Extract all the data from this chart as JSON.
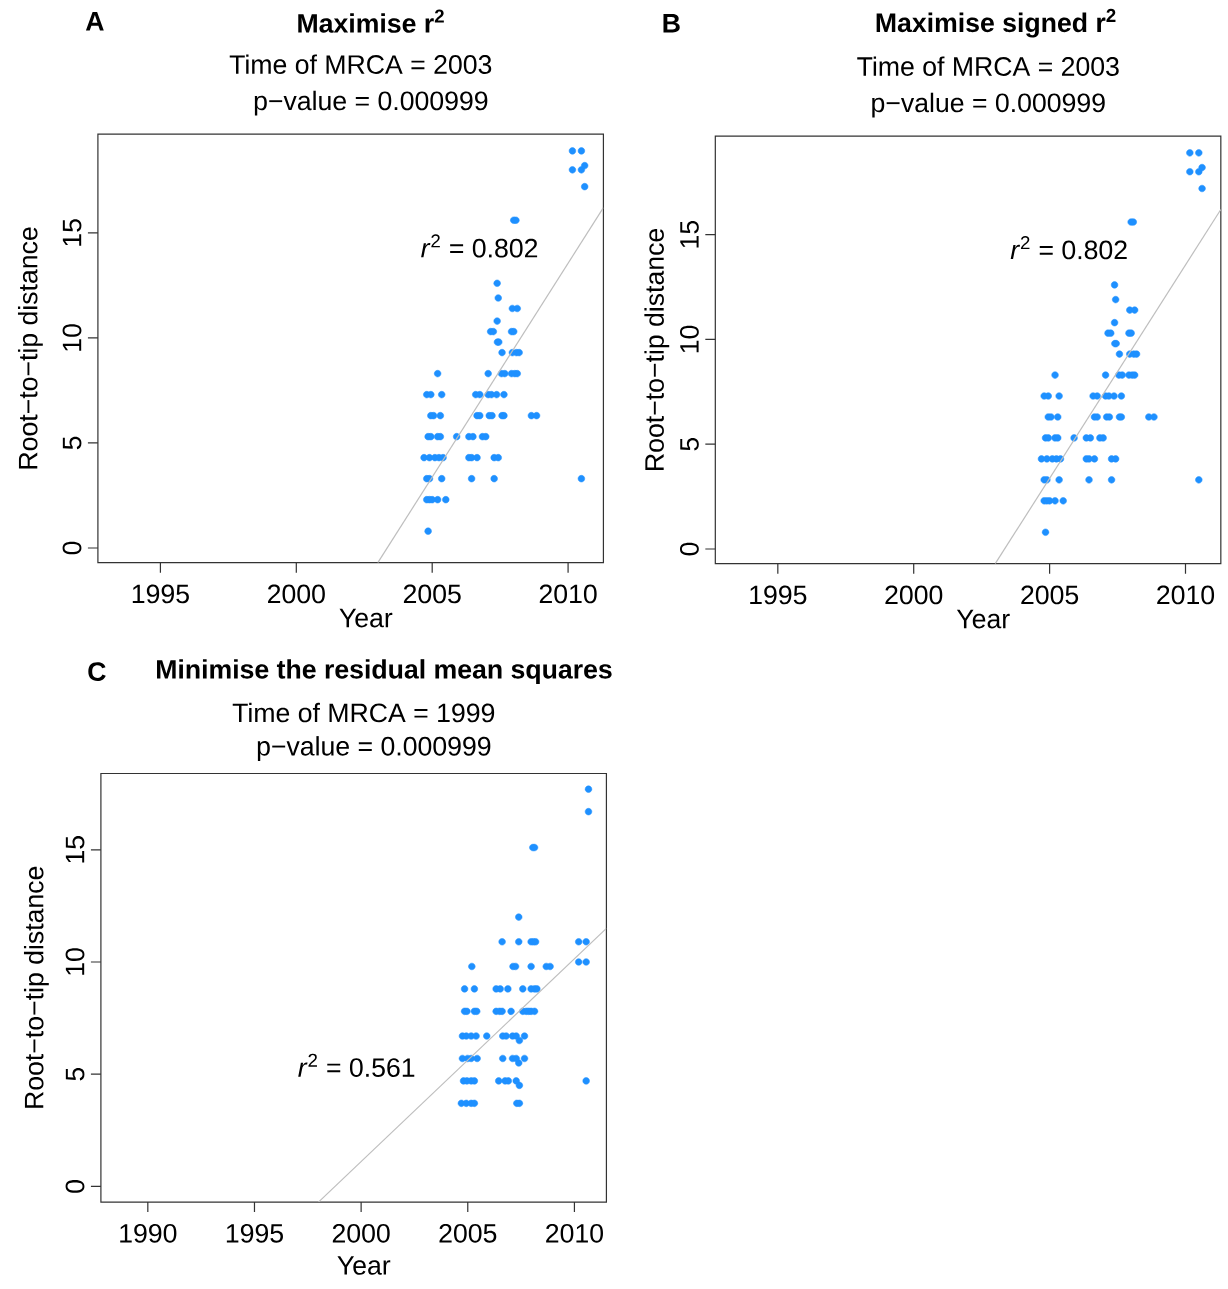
{
  "chart_data": [
    {
      "type": "scatter",
      "title": "Maximise r$^{2}$",
      "subtitle": "Time of MRCA =  2003",
      "xlabel": "Year",
      "ylabel": "Root−to−tip distance",
      "annotations": [
        "A",
        "p−value = 0.000999",
        "*r*$^{2}$ =   0.802"
      ],
      "xlim": [
        1992.7,
        2011.3
      ],
      "ylim": [
        -0.7,
        19.7
      ],
      "xticks": [
        1995,
        2000,
        2005,
        2010
      ],
      "yticks": [
        0,
        5,
        10,
        15
      ],
      "grid": false,
      "series": [
        {
          "marker": "circle",
          "color": "#1e90ff",
          "x": [
            2004.85,
            2004.8,
            2004.9,
            2005.0,
            2005.2,
            2005.5,
            2004.8,
            2004.9,
            2005.35,
            2006.45,
            2007.28,
            2010.49,
            2004.7,
            2004.9,
            2005.1,
            2005.25,
            2005.4,
            2006.35,
            2006.45,
            2006.65,
            2007.28,
            2007.43,
            2004.85,
            2004.95,
            2005.2,
            2005.3,
            2005.9,
            2006.35,
            2006.5,
            2006.85,
            2006.97,
            2004.95,
            2005.05,
            2005.3,
            2006.65,
            2006.75,
            2007.1,
            2007.2,
            2007.57,
            2007.64,
            2008.65,
            2008.84,
            2004.8,
            2004.95,
            2005.35,
            2006.6,
            2006.75,
            2007.06,
            2007.18,
            2007.37,
            2007.64,
            2005.2,
            2007.06,
            2007.55,
            2007.67,
            2007.92,
            2008.04,
            2008.13,
            2007.57,
            2007.95,
            2008.1,
            2008.2,
            2007.4,
            2007.45,
            2007.15,
            2007.25,
            2007.92,
            2008.0,
            2007.39,
            2007.95,
            2008.13,
            2007.43,
            2007.39,
            2008.0,
            2008.08,
            2010.61,
            2010.16,
            2010.49,
            2010.61,
            2010.16,
            2010.49
          ],
          "values": [
            0.8,
            2.3,
            2.3,
            2.3,
            2.3,
            2.3,
            3.3,
            3.3,
            3.3,
            3.3,
            3.3,
            3.3,
            4.3,
            4.3,
            4.3,
            4.3,
            4.3,
            4.3,
            4.3,
            4.3,
            4.3,
            4.3,
            5.3,
            5.3,
            5.3,
            5.3,
            5.3,
            5.3,
            5.3,
            5.3,
            5.3,
            6.3,
            6.3,
            6.3,
            6.3,
            6.3,
            6.3,
            6.3,
            6.3,
            6.3,
            6.3,
            6.3,
            7.3,
            7.3,
            7.3,
            7.3,
            7.3,
            7.3,
            7.3,
            7.3,
            7.3,
            8.3,
            8.3,
            8.3,
            8.3,
            8.3,
            8.3,
            8.3,
            9.3,
            9.3,
            9.3,
            9.3,
            9.8,
            9.8,
            10.3,
            10.3,
            10.3,
            10.3,
            10.8,
            11.4,
            11.4,
            11.9,
            12.6,
            15.6,
            15.6,
            17.2,
            18.0,
            18.0,
            18.2,
            18.9,
            18.9
          ]
        },
        {
          "type": "line",
          "marker": "none",
          "color": "#bebebe",
          "x": [
            2003.0,
            2011.3
          ],
          "values": [
            -0.7,
            16.2
          ]
        }
      ]
    },
    {
      "type": "scatter",
      "title": "Maximise signed r$^{2}$",
      "subtitle": "Time of MRCA =  2003",
      "xlabel": "Year",
      "ylabel": "Root−to−tip distance",
      "annotations": [
        "B",
        "p−value = 0.000999",
        "*r*$^{2}$ =   0.802"
      ],
      "xlim": [
        1992.7,
        2011.3
      ],
      "ylim": [
        -0.7,
        19.7
      ],
      "xticks": [
        1995,
        2000,
        2005,
        2010
      ],
      "yticks": [
        0,
        5,
        10,
        15
      ],
      "grid": false,
      "series": [
        {
          "marker": "circle",
          "color": "#1e90ff",
          "x": [
            2004.85,
            2004.8,
            2004.9,
            2005.0,
            2005.2,
            2005.5,
            2004.8,
            2004.9,
            2005.35,
            2006.45,
            2007.28,
            2010.49,
            2004.7,
            2004.9,
            2005.1,
            2005.25,
            2005.4,
            2006.35,
            2006.45,
            2006.65,
            2007.28,
            2007.43,
            2004.85,
            2004.95,
            2005.2,
            2005.3,
            2005.9,
            2006.35,
            2006.5,
            2006.85,
            2006.97,
            2004.95,
            2005.05,
            2005.3,
            2006.65,
            2006.75,
            2007.1,
            2007.2,
            2007.57,
            2007.64,
            2008.65,
            2008.84,
            2004.8,
            2004.95,
            2005.35,
            2006.6,
            2006.75,
            2007.06,
            2007.18,
            2007.37,
            2007.64,
            2005.2,
            2007.06,
            2007.55,
            2007.67,
            2007.92,
            2008.04,
            2008.13,
            2007.57,
            2007.95,
            2008.1,
            2008.2,
            2007.4,
            2007.45,
            2007.15,
            2007.25,
            2007.92,
            2008.0,
            2007.39,
            2007.95,
            2008.13,
            2007.43,
            2007.39,
            2008.0,
            2008.08,
            2010.61,
            2010.16,
            2010.49,
            2010.61,
            2010.16,
            2010.49
          ],
          "values": [
            0.8,
            2.3,
            2.3,
            2.3,
            2.3,
            2.3,
            3.3,
            3.3,
            3.3,
            3.3,
            3.3,
            3.3,
            4.3,
            4.3,
            4.3,
            4.3,
            4.3,
            4.3,
            4.3,
            4.3,
            4.3,
            4.3,
            5.3,
            5.3,
            5.3,
            5.3,
            5.3,
            5.3,
            5.3,
            5.3,
            5.3,
            6.3,
            6.3,
            6.3,
            6.3,
            6.3,
            6.3,
            6.3,
            6.3,
            6.3,
            6.3,
            6.3,
            7.3,
            7.3,
            7.3,
            7.3,
            7.3,
            7.3,
            7.3,
            7.3,
            7.3,
            8.3,
            8.3,
            8.3,
            8.3,
            8.3,
            8.3,
            8.3,
            9.3,
            9.3,
            9.3,
            9.3,
            9.8,
            9.8,
            10.3,
            10.3,
            10.3,
            10.3,
            10.8,
            11.4,
            11.4,
            11.9,
            12.6,
            15.6,
            15.6,
            17.2,
            18.0,
            18.0,
            18.2,
            18.9,
            18.9
          ]
        },
        {
          "type": "line",
          "marker": "none",
          "color": "#bebebe",
          "x": [
            2003.0,
            2011.3
          ],
          "values": [
            -0.7,
            16.2
          ]
        }
      ]
    },
    {
      "type": "scatter",
      "title": "Minimise the residual mean squares",
      "subtitle": "Time of MRCA = 1999",
      "xlabel": "Year",
      "ylabel": "Root−to−tip distance",
      "annotations": [
        "C",
        "p−value = 0.000999",
        "*r*$^{2}$ =   0.561"
      ],
      "xlim": [
        1987.8,
        2011.5
      ],
      "ylim": [
        -0.7,
        18.4
      ],
      "xticks": [
        1990,
        1995,
        2000,
        2005,
        2010
      ],
      "yticks": [
        0,
        5,
        10,
        15
      ],
      "grid": false,
      "series": [
        {
          "marker": "circle",
          "color": "#1e90ff",
          "x": [
            2004.7,
            2004.93,
            2005.16,
            2005.31,
            2007.3,
            2007.42,
            2007.42,
            2004.8,
            2004.96,
            2005.16,
            2005.31,
            2006.45,
            2006.75,
            2006.9,
            2007.27,
            2010.55,
            2007.39,
            2004.75,
            2004.99,
            2005.16,
            2005.44,
            2006.64,
            2007.1,
            2007.27,
            2007.66,
            2007.42,
            2004.75,
            2004.93,
            2005.16,
            2005.39,
            2005.89,
            2006.64,
            2006.8,
            2007.1,
            2007.27,
            2007.66,
            2004.85,
            2004.96,
            2005.31,
            2005.42,
            2006.33,
            2006.49,
            2006.61,
            2007.03,
            2007.58,
            2007.74,
            2007.86,
            2007.97,
            2008.13,
            2004.85,
            2005.31,
            2006.33,
            2006.52,
            2006.88,
            2007.58,
            2007.97,
            2008.13,
            2008.24,
            2005.19,
            2007.12,
            2007.24,
            2007.97,
            2008.68,
            2008.86,
            2010.2,
            2010.55,
            2006.61,
            2007.39,
            2007.97,
            2008.08,
            2008.18,
            2010.2,
            2010.55,
            2007.39,
            2008.05,
            2008.13,
            2010.66,
            2010.66
          ],
          "values": [
            3.7,
            3.7,
            3.7,
            3.7,
            3.7,
            3.7,
            4.5,
            4.7,
            4.7,
            4.7,
            4.7,
            4.7,
            4.7,
            4.7,
            4.7,
            4.7,
            5.5,
            5.7,
            5.7,
            5.7,
            5.7,
            5.7,
            5.7,
            5.7,
            5.7,
            6.5,
            6.7,
            6.7,
            6.7,
            6.7,
            6.7,
            6.7,
            6.7,
            6.7,
            6.7,
            6.7,
            7.8,
            7.8,
            7.8,
            7.8,
            7.8,
            7.8,
            7.8,
            7.8,
            7.8,
            7.8,
            7.8,
            7.8,
            7.8,
            8.8,
            8.8,
            8.8,
            8.8,
            8.8,
            8.8,
            8.8,
            8.8,
            8.8,
            9.8,
            9.8,
            9.8,
            9.8,
            9.8,
            9.8,
            10.0,
            10.0,
            10.9,
            10.9,
            10.9,
            10.9,
            10.9,
            10.9,
            10.9,
            12.0,
            15.1,
            15.1,
            16.7,
            17.7
          ]
        },
        {
          "type": "line",
          "marker": "none",
          "color": "#bebebe",
          "x": [
            1998.0,
            2011.5
          ],
          "values": [
            -0.7,
            11.5
          ]
        }
      ]
    }
  ]
}
